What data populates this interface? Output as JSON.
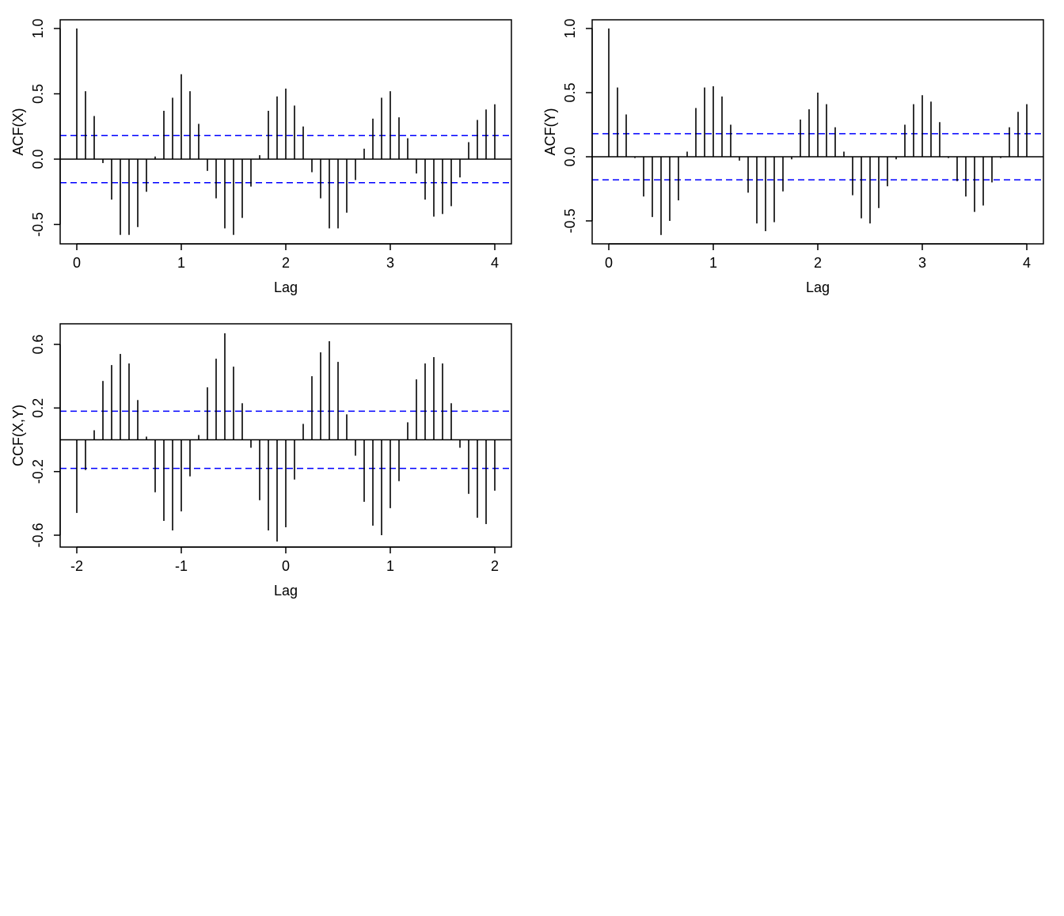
{
  "colors": {
    "bars": "#000000",
    "bounds": "#0000ff",
    "axis": "#000000"
  },
  "chart_data": [
    {
      "type": "bar",
      "title": "",
      "xlabel": "Lag",
      "ylabel": "ACF(X)",
      "xlim": [
        0,
        4
      ],
      "ylim": [
        -0.6,
        1.0
      ],
      "xticks": [
        "0",
        "1",
        "2",
        "3",
        "4"
      ],
      "yticks": [
        "-0.5",
        "0.0",
        "0.5",
        "1.0"
      ],
      "lag_start": 0,
      "lag_step_denominator": 12,
      "conf_bound": 0.18,
      "values": [
        1.0,
        0.52,
        0.33,
        -0.03,
        -0.31,
        -0.58,
        -0.58,
        -0.52,
        -0.25,
        0.02,
        0.37,
        0.47,
        0.65,
        0.52,
        0.27,
        -0.09,
        -0.3,
        -0.53,
        -0.58,
        -0.45,
        -0.21,
        0.03,
        0.37,
        0.48,
        0.54,
        0.41,
        0.25,
        -0.1,
        -0.3,
        -0.53,
        -0.53,
        -0.41,
        -0.16,
        0.08,
        0.31,
        0.47,
        0.52,
        0.32,
        0.16,
        -0.11,
        -0.31,
        -0.44,
        -0.42,
        -0.36,
        -0.14,
        0.13,
        0.3,
        0.38,
        0.42
      ]
    },
    {
      "type": "bar",
      "title": "",
      "xlabel": "Lag",
      "ylabel": "ACF(Y)",
      "xlim": [
        0,
        4
      ],
      "ylim": [
        -0.6,
        1.0
      ],
      "xticks": [
        "0",
        "1",
        "2",
        "3",
        "4"
      ],
      "yticks": [
        "-0.5",
        "0.0",
        "0.5",
        "1.0"
      ],
      "lag_start": 0,
      "lag_step_denominator": 12,
      "conf_bound": 0.18,
      "values": [
        1.0,
        0.54,
        0.33,
        -0.01,
        -0.31,
        -0.47,
        -0.61,
        -0.5,
        -0.34,
        0.04,
        0.38,
        0.54,
        0.55,
        0.47,
        0.25,
        -0.03,
        -0.28,
        -0.52,
        -0.58,
        -0.51,
        -0.27,
        -0.02,
        0.29,
        0.37,
        0.5,
        0.41,
        0.23,
        0.04,
        -0.3,
        -0.48,
        -0.52,
        -0.4,
        -0.23,
        -0.02,
        0.25,
        0.41,
        0.48,
        0.43,
        0.27,
        -0.01,
        -0.19,
        -0.31,
        -0.43,
        -0.38,
        -0.2,
        -0.01,
        0.23,
        0.35,
        0.41
      ]
    },
    {
      "type": "bar",
      "title": "",
      "xlabel": "Lag",
      "ylabel": "CCF(X,Y)",
      "xlim": [
        -2,
        2
      ],
      "ylim": [
        -0.68,
        0.7
      ],
      "xticks": [
        "-2",
        "-1",
        "0",
        "1",
        "2"
      ],
      "yticks": [
        "-0.6",
        "-0.2",
        "0.2",
        "0.6"
      ],
      "lag_start": -2,
      "lag_step_denominator": 12,
      "conf_bound": 0.18,
      "values": [
        -0.46,
        -0.19,
        0.06,
        0.37,
        0.47,
        0.54,
        0.48,
        0.25,
        0.02,
        -0.33,
        -0.51,
        -0.57,
        -0.45,
        -0.23,
        0.03,
        0.33,
        0.51,
        0.67,
        0.46,
        0.23,
        -0.05,
        -0.38,
        -0.57,
        -0.64,
        -0.55,
        -0.25,
        0.1,
        0.4,
        0.55,
        0.62,
        0.49,
        0.16,
        -0.1,
        -0.39,
        -0.54,
        -0.6,
        -0.43,
        -0.26,
        0.11,
        0.38,
        0.48,
        0.52,
        0.48,
        0.23,
        -0.05,
        -0.34,
        -0.49,
        -0.53,
        -0.32
      ]
    }
  ]
}
